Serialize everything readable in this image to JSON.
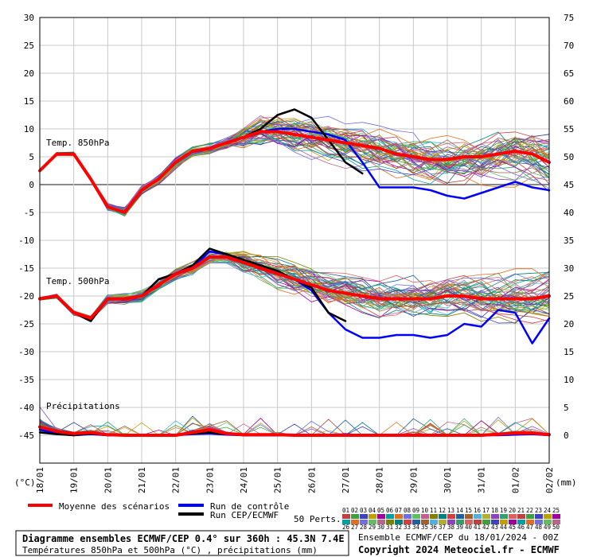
{
  "header": {
    "left_unit": "(°C)",
    "right_unit": "(mm)"
  },
  "sections": {
    "t850": "Temp. 850hPa",
    "t500": "Temp. 500hPa",
    "precip": "Précipitations"
  },
  "legend": {
    "mean": "Moyenne des scénarios",
    "control": "Run de contrôle",
    "cep": "Run CEP/ECMWF",
    "perts": "50 Perts.",
    "pert_numbers": [
      "01",
      "02",
      "03",
      "04",
      "05",
      "06",
      "07",
      "08",
      "09",
      "10",
      "11",
      "12",
      "13",
      "14",
      "15",
      "16",
      "17",
      "18",
      "19",
      "20",
      "21",
      "22",
      "23",
      "24",
      "25",
      "26",
      "27",
      "28",
      "29",
      "30",
      "31",
      "32",
      "33",
      "34",
      "35",
      "36",
      "37",
      "38",
      "39",
      "40",
      "41",
      "42",
      "43",
      "44",
      "45",
      "46",
      "47",
      "48",
      "49",
      "50"
    ]
  },
  "footer": {
    "title": "Diagramme ensembles ECMWF/CEP 0.4° sur 360h : 45.3N 7.4E",
    "subtitle": "Températures 850hPa et 500hPa (°C) , précipitations (mm)",
    "run": "Ensemble ECMWF/CEP du 18/01/2024 - 00Z",
    "copyright": "Copyright 2024 Meteociel.fr - ECMWF"
  },
  "colors": {
    "mean": "#ff0000",
    "control": "#0000ff",
    "cep": "#000000",
    "grid": "#c8c8c8"
  },
  "chart_data": {
    "type": "line",
    "x_labels": [
      "18/01",
      "19/01",
      "20/01",
      "21/01",
      "22/01",
      "23/01",
      "24/01",
      "25/01",
      "26/01",
      "27/01",
      "28/01",
      "29/01",
      "30/01",
      "31/01",
      "01/02",
      "02/02"
    ],
    "x_range_hours": [
      0,
      360
    ],
    "y_left_range": [
      -50,
      30
    ],
    "y_left_ticks": [
      30,
      25,
      20,
      15,
      10,
      5,
      0,
      -5,
      -10,
      -15,
      -20,
      -25,
      -30,
      -35,
      -40,
      -45
    ],
    "y_right_ticks": [
      75,
      70,
      65,
      60,
      55,
      50,
      45,
      40,
      35,
      30,
      25,
      20,
      15,
      10,
      5,
      0
    ],
    "hours": [
      0,
      12,
      24,
      36,
      48,
      60,
      72,
      84,
      96,
      108,
      120,
      132,
      144,
      156,
      168,
      180,
      192,
      204,
      216,
      228,
      240,
      252,
      264,
      276,
      288,
      300,
      312,
      324,
      336,
      348,
      360
    ],
    "t850": {
      "mean": [
        2.5,
        5.5,
        5.5,
        1,
        -4,
        -5,
        -1,
        1,
        4,
        6,
        6.5,
        7.5,
        8.5,
        9.5,
        9.5,
        9,
        8.5,
        8,
        7.5,
        7,
        6.5,
        5.5,
        5,
        4.5,
        4.5,
        5,
        5,
        5.5,
        6,
        5.5,
        4
      ],
      "control": [
        2.5,
        5.5,
        5.5,
        1,
        -4,
        -5,
        -1,
        1,
        4,
        6,
        6.5,
        7.5,
        8.5,
        9.5,
        10,
        10,
        9.5,
        9,
        8,
        4,
        -0.5,
        -0.5,
        -0.5,
        -1,
        -2,
        -2.5,
        -1.5,
        -0.5,
        0.5,
        -0.5,
        -1
      ],
      "cep": [
        2.5,
        5.5,
        5.5,
        1,
        -4,
        -5,
        -1,
        1,
        4,
        6,
        6.5,
        7.5,
        8.5,
        10,
        12.5,
        13.5,
        12,
        8,
        4,
        2,
        null,
        null,
        null,
        null,
        null,
        null,
        null,
        null,
        null,
        null,
        null
      ]
    },
    "t500": {
      "mean": [
        -20.5,
        -20,
        -23,
        -24,
        -20.5,
        -20.5,
        -20,
        -18,
        -16,
        -15,
        -13,
        -13,
        -14,
        -15,
        -16,
        -17,
        -18,
        -19,
        -19.5,
        -20,
        -20.5,
        -20.5,
        -20.5,
        -20.5,
        -20,
        -20,
        -20.5,
        -20.5,
        -20.5,
        -20.5,
        -20
      ],
      "control": [
        -20.5,
        -20,
        -23,
        -24.5,
        -20.5,
        -20.5,
        -20,
        -17,
        -16,
        -15,
        -12,
        -12.5,
        -14,
        -15,
        -16,
        -17,
        -19,
        -23,
        -26,
        -27.5,
        -27.5,
        -27,
        -27,
        -27.5,
        -27,
        -25,
        -25.5,
        -22.5,
        -23,
        -28.5,
        -24
      ],
      "cep": [
        -20.5,
        -20,
        -23,
        -24.5,
        -20.5,
        -20.5,
        -20,
        -17,
        -16,
        -14.5,
        -11.5,
        -12.5,
        -13.5,
        -14.5,
        -15.5,
        -17,
        -18.5,
        -23,
        -24.5,
        null,
        null,
        null,
        null,
        null,
        null,
        null,
        null,
        null,
        null,
        null,
        null
      ]
    },
    "precip_mm": {
      "mean": [
        1.5,
        0.7,
        0.3,
        0.5,
        0.1,
        0,
        0,
        0,
        0,
        0.5,
        1,
        0.3,
        0.1,
        0.1,
        0.1,
        0,
        0,
        0,
        0,
        0,
        0,
        0,
        0,
        0,
        0,
        0,
        0,
        0.2,
        0.4,
        0.4,
        0.1
      ],
      "control": [
        1,
        0.3,
        0,
        0.2,
        0,
        0,
        0,
        0,
        0,
        0.2,
        0.3,
        0.1,
        0,
        0,
        0,
        0,
        0,
        0,
        0.2,
        0,
        0,
        0,
        0,
        0,
        0,
        0,
        0,
        0,
        0.1,
        0.2,
        0
      ],
      "cep": [
        0.5,
        0.2,
        0,
        0.3,
        0,
        0,
        0,
        0,
        0,
        0.3,
        0.5,
        0.2,
        0,
        0,
        0,
        0,
        0,
        0,
        0,
        null,
        null,
        null,
        null,
        null,
        null,
        null,
        null,
        null,
        null,
        null,
        null
      ]
    }
  }
}
